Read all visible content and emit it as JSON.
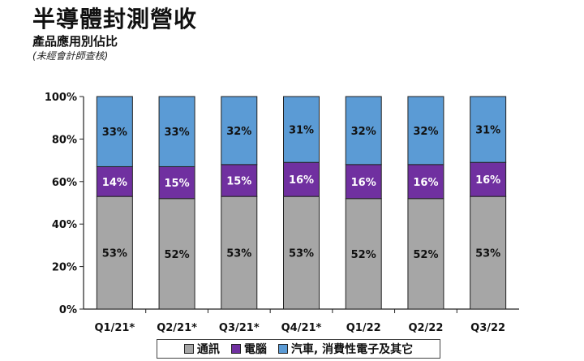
{
  "title": "半導體封測營收",
  "subtitle": "產品應用別佔比",
  "note": "(未經會計師查核)",
  "colors": {
    "communication": "#a6a6a6",
    "computer": "#7030a0",
    "auto_consumer_other": "#5b9bd5"
  },
  "chart_data": {
    "type": "bar",
    "stacked": true,
    "categories": [
      "Q1/21*",
      "Q2/21*",
      "Q3/21*",
      "Q4/21*",
      "Q1/22",
      "Q2/22",
      "Q3/22"
    ],
    "ylim": [
      0,
      100
    ],
    "yticks": [
      "0%",
      "20%",
      "40%",
      "60%",
      "80%",
      "100%"
    ],
    "legend_position": "bottom",
    "series": [
      {
        "name": "通訊",
        "values": [
          53,
          52,
          53,
          53,
          52,
          52,
          53
        ],
        "labels": [
          "53%",
          "52%",
          "53%",
          "53%",
          "52%",
          "52%",
          "53%"
        ]
      },
      {
        "name": "電腦",
        "values": [
          14,
          15,
          15,
          16,
          16,
          16,
          16
        ],
        "labels": [
          "14%",
          "15%",
          "15%",
          "16%",
          "16%",
          "16%",
          "16%"
        ]
      },
      {
        "name": "汽車, 消費性電子及其它",
        "values": [
          33,
          33,
          32,
          31,
          32,
          32,
          31
        ],
        "labels": [
          "33%",
          "33%",
          "32%",
          "31%",
          "32%",
          "32%",
          "31%"
        ]
      }
    ]
  }
}
